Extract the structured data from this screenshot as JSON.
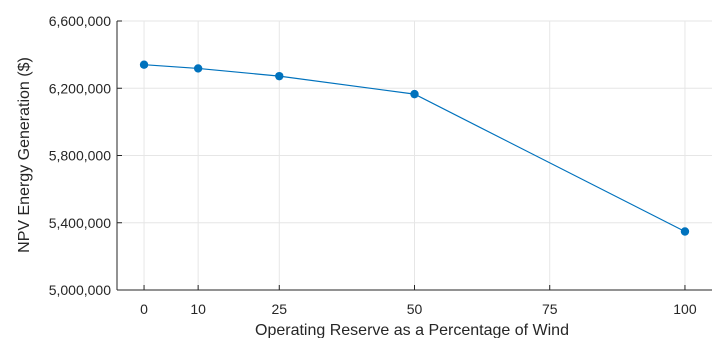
{
  "chart_data": {
    "type": "line",
    "title": "",
    "xlabel": "Operating Reserve as a Percentage of Wind",
    "ylabel": "NPV Energy Generation ($)",
    "x": [
      0,
      10,
      25,
      50,
      100
    ],
    "series": [
      {
        "name": "",
        "values": [
          6340000,
          6318000,
          6272000,
          6165000,
          5348000
        ]
      }
    ],
    "xlim": [
      -5,
      105
    ],
    "ylim": [
      5000000,
      6600000
    ],
    "xticks": [
      0,
      10,
      25,
      50,
      75,
      100
    ],
    "xtick_labels": [
      "0",
      "10",
      "25",
      "50",
      "75",
      "100"
    ],
    "yticks": [
      5000000,
      5400000,
      5800000,
      6200000,
      6600000
    ],
    "ytick_labels": [
      "5,000,000",
      "5,400,000",
      "5,800,000",
      "6,200,000",
      "6,600,000"
    ],
    "grid": true,
    "legend": "none",
    "colors": {
      "series": "#0072BD",
      "grid": "#e6e6e6",
      "axis": "#262626"
    }
  }
}
